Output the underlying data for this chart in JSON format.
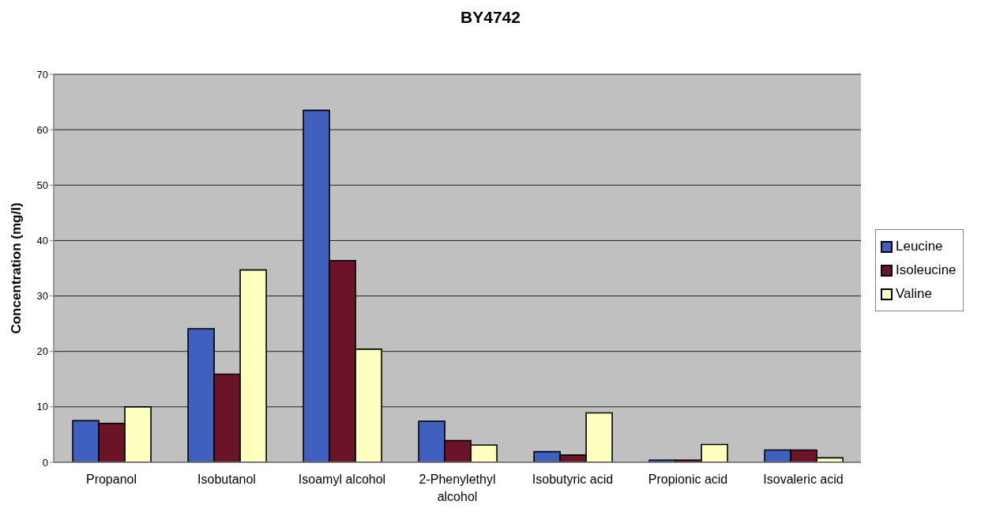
{
  "chart_data": {
    "type": "bar",
    "title": "BY4742",
    "ylabel": "Concentration (mg/l)",
    "categories": [
      "Propanol",
      "Isobutanol",
      "Isoamyl alcohol",
      "2-Phenylethyl alcohol",
      "Isobutyric acid",
      "Propionic acid",
      "Isovaleric acid"
    ],
    "series": [
      {
        "name": "Leucine",
        "color": "#4060c0",
        "values": [
          7.5,
          24.1,
          63.5,
          7.4,
          1.9,
          0.4,
          2.2
        ]
      },
      {
        "name": "Isoleucine",
        "color": "#6b1428",
        "values": [
          7.0,
          15.9,
          36.4,
          3.9,
          1.3,
          0.4,
          2.2
        ]
      },
      {
        "name": "Valine",
        "color": "#ffffc0",
        "values": [
          10.0,
          34.7,
          20.4,
          3.1,
          8.9,
          3.2,
          0.8
        ]
      }
    ],
    "ylim": [
      0,
      70
    ],
    "yticks": [
      0,
      10,
      20,
      30,
      40,
      50,
      60,
      70
    ],
    "grid": "y",
    "legend": "right"
  }
}
